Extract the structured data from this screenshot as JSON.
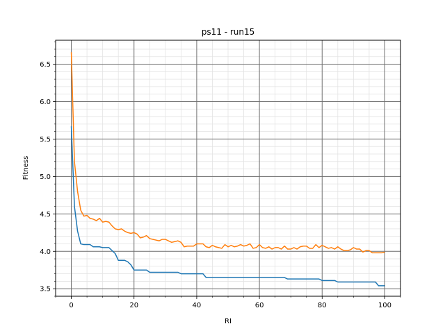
{
  "chart_data": {
    "type": "line",
    "title": "ps11 - run15",
    "xlabel": "RI",
    "ylabel": "Fitness",
    "xlim": [
      -5,
      105
    ],
    "ylim": [
      3.4,
      6.82
    ],
    "x_major_ticks": [
      0,
      20,
      40,
      60,
      80,
      100
    ],
    "x_minor_step": 5,
    "y_major_ticks": [
      3.5,
      4.0,
      4.5,
      5.0,
      5.5,
      6.0,
      6.5
    ],
    "y_tick_labels": [
      "3.5",
      "4.0",
      "4.5",
      "5.0",
      "5.5",
      "6.0",
      "6.5"
    ],
    "y_minor_step": 0.1,
    "grid": "major and minor",
    "legend": "none",
    "series": [
      {
        "color": "#1f77b4",
        "x": [
          0,
          1,
          2,
          3,
          4,
          5,
          6,
          7,
          8,
          9,
          10,
          11,
          12,
          13,
          14,
          15,
          16,
          17,
          18,
          19,
          20,
          21,
          22,
          23,
          24,
          25,
          26,
          27,
          28,
          29,
          30,
          31,
          32,
          33,
          34,
          35,
          36,
          37,
          38,
          39,
          40,
          41,
          42,
          43,
          44,
          45,
          46,
          47,
          48,
          49,
          50,
          51,
          52,
          53,
          54,
          55,
          56,
          57,
          58,
          59,
          60,
          61,
          62,
          63,
          64,
          65,
          66,
          67,
          68,
          69,
          70,
          71,
          72,
          73,
          74,
          75,
          76,
          77,
          78,
          79,
          80,
          81,
          82,
          83,
          84,
          85,
          86,
          87,
          88,
          89,
          90,
          91,
          92,
          93,
          94,
          95,
          96,
          97,
          98,
          99,
          100
        ],
        "y": [
          5.67,
          4.6,
          4.27,
          4.1,
          4.09,
          4.09,
          4.09,
          4.06,
          4.06,
          4.06,
          4.05,
          4.05,
          4.05,
          4.01,
          3.97,
          3.88,
          3.88,
          3.88,
          3.86,
          3.82,
          3.75,
          3.75,
          3.75,
          3.75,
          3.75,
          3.72,
          3.72,
          3.72,
          3.72,
          3.72,
          3.72,
          3.72,
          3.72,
          3.72,
          3.72,
          3.7,
          3.7,
          3.7,
          3.7,
          3.7,
          3.7,
          3.7,
          3.7,
          3.65,
          3.65,
          3.65,
          3.65,
          3.65,
          3.65,
          3.65,
          3.65,
          3.65,
          3.65,
          3.65,
          3.65,
          3.65,
          3.65,
          3.65,
          3.65,
          3.65,
          3.65,
          3.65,
          3.65,
          3.65,
          3.65,
          3.65,
          3.65,
          3.65,
          3.65,
          3.63,
          3.63,
          3.63,
          3.63,
          3.63,
          3.63,
          3.63,
          3.63,
          3.63,
          3.63,
          3.63,
          3.61,
          3.61,
          3.61,
          3.61,
          3.61,
          3.59,
          3.59,
          3.59,
          3.59,
          3.59,
          3.59,
          3.59,
          3.59,
          3.59,
          3.59,
          3.59,
          3.59,
          3.59,
          3.54,
          3.54,
          3.54
        ]
      },
      {
        "color": "#ff7f0e",
        "x": [
          0,
          1,
          2,
          3,
          4,
          5,
          6,
          7,
          8,
          9,
          10,
          11,
          12,
          13,
          14,
          15,
          16,
          17,
          18,
          19,
          20,
          21,
          22,
          23,
          24,
          25,
          26,
          27,
          28,
          29,
          30,
          31,
          32,
          33,
          34,
          35,
          36,
          37,
          38,
          39,
          40,
          41,
          42,
          43,
          44,
          45,
          46,
          47,
          48,
          49,
          50,
          51,
          52,
          53,
          54,
          55,
          56,
          57,
          58,
          59,
          60,
          61,
          62,
          63,
          64,
          65,
          66,
          67,
          68,
          69,
          70,
          71,
          72,
          73,
          74,
          75,
          76,
          77,
          78,
          79,
          80,
          81,
          82,
          83,
          84,
          85,
          86,
          87,
          88,
          89,
          90,
          91,
          92,
          93,
          94,
          95,
          96,
          97,
          98,
          99,
          100
        ],
        "y": [
          6.66,
          5.2,
          4.8,
          4.55,
          4.47,
          4.48,
          4.44,
          4.43,
          4.41,
          4.44,
          4.39,
          4.4,
          4.39,
          4.34,
          4.3,
          4.29,
          4.3,
          4.27,
          4.25,
          4.24,
          4.25,
          4.23,
          4.18,
          4.19,
          4.21,
          4.17,
          4.16,
          4.15,
          4.14,
          4.16,
          4.16,
          4.14,
          4.12,
          4.13,
          4.14,
          4.12,
          4.06,
          4.07,
          4.07,
          4.07,
          4.1,
          4.1,
          4.1,
          4.06,
          4.05,
          4.08,
          4.06,
          4.05,
          4.04,
          4.09,
          4.06,
          4.08,
          4.06,
          4.07,
          4.09,
          4.07,
          4.08,
          4.1,
          4.04,
          4.05,
          4.09,
          4.05,
          4.04,
          4.06,
          4.03,
          4.05,
          4.05,
          4.03,
          4.07,
          4.03,
          4.03,
          4.05,
          4.03,
          4.06,
          4.07,
          4.07,
          4.04,
          4.04,
          4.09,
          4.05,
          4.08,
          4.06,
          4.04,
          4.05,
          4.03,
          4.06,
          4.03,
          4.01,
          4.01,
          4.02,
          4.05,
          4.03,
          4.03,
          3.99,
          4.01,
          4.01,
          3.98,
          3.98,
          3.98,
          3.98,
          3.99
        ]
      }
    ]
  }
}
